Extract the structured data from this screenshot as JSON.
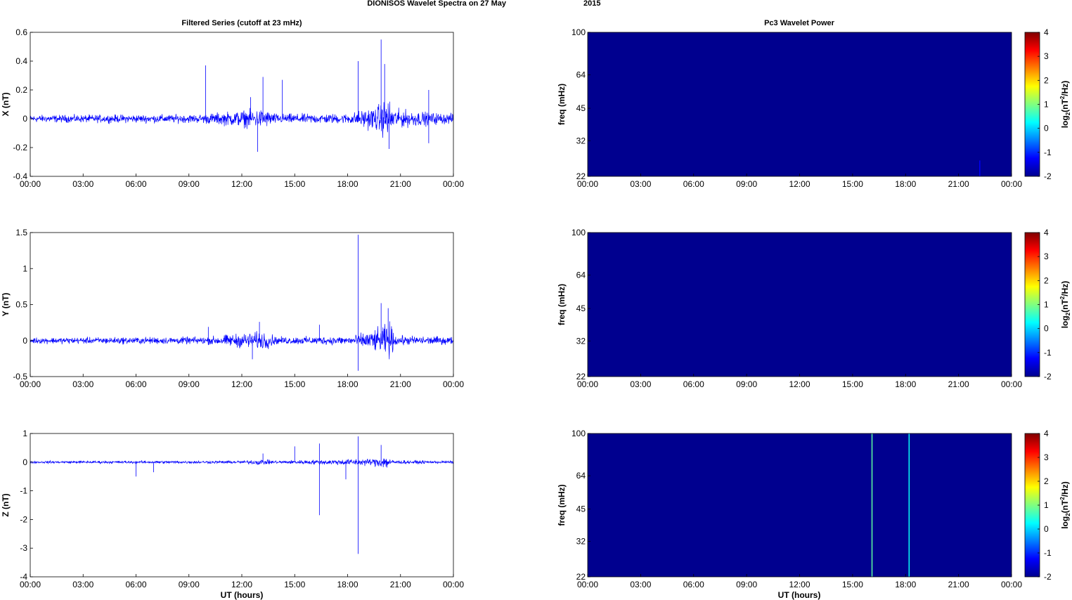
{
  "figure": {
    "title_left": "DIONISOS Wavelet Spectra on 27 May",
    "title_right": "2015",
    "left_column_title": "Filtered Series (cutoff at 23 mHz)",
    "right_column_title": "Pc3 Wavelet Power",
    "xlabel": "UT (hours)"
  },
  "colors": {
    "trace": "#0000ff",
    "background_power": "#00008f",
    "colormap": [
      "#00008f",
      "#0000ff",
      "#0080ff",
      "#00ffff",
      "#80ff80",
      "#ffff00",
      "#ff8000",
      "#ff0000",
      "#800000"
    ]
  },
  "chart_data": [
    {
      "type": "line",
      "panel": "X",
      "ylabel": "X (nT)",
      "xlim": [
        "00:00",
        "24:00"
      ],
      "ylim": [
        -0.4,
        0.6
      ],
      "xticks": [
        "00:00",
        "03:00",
        "06:00",
        "09:00",
        "12:00",
        "15:00",
        "18:00",
        "21:00",
        "00:00"
      ],
      "yticks": [
        -0.4,
        -0.2,
        0,
        0.2,
        0.4,
        0.6
      ],
      "ytick_labels": [
        "-0.4",
        "-0.2",
        "0",
        "0.2",
        "0.4",
        "0.6"
      ],
      "baseline_amp": 0.03,
      "envelope": [
        [
          0,
          0.03
        ],
        [
          9.5,
          0.035
        ],
        [
          12.2,
          0.07
        ],
        [
          13.2,
          0.08
        ],
        [
          14,
          0.04
        ],
        [
          18,
          0.04
        ],
        [
          19.6,
          0.1
        ],
        [
          20.3,
          0.17
        ],
        [
          20.6,
          0.08
        ],
        [
          22.8,
          0.05
        ],
        [
          24,
          0.04
        ]
      ],
      "spikes": [
        [
          9.95,
          0.37
        ],
        [
          12.5,
          0.15
        ],
        [
          12.9,
          -0.23
        ],
        [
          13.2,
          0.29
        ],
        [
          14.3,
          0.27
        ],
        [
          18.6,
          0.4
        ],
        [
          19.9,
          0.55
        ],
        [
          20.1,
          0.38
        ],
        [
          20.35,
          -0.21
        ],
        [
          22.6,
          0.2
        ],
        [
          22.6,
          -0.17
        ]
      ]
    },
    {
      "type": "line",
      "panel": "Y",
      "ylabel": "Y (nT)",
      "xlim": [
        "00:00",
        "24:00"
      ],
      "ylim": [
        -0.5,
        1.5
      ],
      "xticks": [
        "00:00",
        "03:00",
        "06:00",
        "09:00",
        "12:00",
        "15:00",
        "18:00",
        "21:00",
        "00:00"
      ],
      "yticks": [
        -0.5,
        0,
        0.5,
        1,
        1.5
      ],
      "ytick_labels": [
        "-0.5",
        "0",
        "0.5",
        "1",
        "1.5"
      ],
      "baseline_amp": 0.05,
      "envelope": [
        [
          0,
          0.05
        ],
        [
          10,
          0.06
        ],
        [
          12,
          0.12
        ],
        [
          13.3,
          0.15
        ],
        [
          14,
          0.06
        ],
        [
          18.2,
          0.07
        ],
        [
          19.8,
          0.2
        ],
        [
          20.4,
          0.3
        ],
        [
          20.7,
          0.08
        ],
        [
          24,
          0.06
        ]
      ],
      "spikes": [
        [
          10.1,
          0.19
        ],
        [
          12.6,
          -0.26
        ],
        [
          13,
          0.26
        ],
        [
          16.4,
          0.22
        ],
        [
          18.6,
          1.47
        ],
        [
          18.6,
          -0.42
        ],
        [
          19.9,
          0.52
        ],
        [
          20.3,
          0.45
        ]
      ]
    },
    {
      "type": "line",
      "panel": "Z",
      "ylabel": "Z (nT)",
      "xlim": [
        "00:00",
        "24:00"
      ],
      "ylim": [
        -4,
        1
      ],
      "xticks": [
        "00:00",
        "03:00",
        "06:00",
        "09:00",
        "12:00",
        "15:00",
        "18:00",
        "21:00",
        "00:00"
      ],
      "yticks": [
        -4,
        -3,
        -2,
        -1,
        0,
        1
      ],
      "ytick_labels": [
        "-4",
        "-3",
        "-2",
        "-1",
        "0",
        "1"
      ],
      "baseline_amp": 0.05,
      "envelope": [
        [
          0,
          0.05
        ],
        [
          12,
          0.06
        ],
        [
          13,
          0.12
        ],
        [
          14,
          0.06
        ],
        [
          19.5,
          0.15
        ],
        [
          20.2,
          0.3
        ],
        [
          20.5,
          0.08
        ],
        [
          24,
          0.05
        ]
      ],
      "spikes": [
        [
          6,
          -0.5
        ],
        [
          7,
          -0.35
        ],
        [
          13.2,
          0.3
        ],
        [
          15,
          0.55
        ],
        [
          16.4,
          0.65
        ],
        [
          16.4,
          -1.85
        ],
        [
          17.9,
          -0.6
        ],
        [
          18.6,
          0.9
        ],
        [
          18.6,
          -3.2
        ],
        [
          19.9,
          0.6
        ]
      ]
    },
    {
      "type": "heatmap",
      "panel": "X power",
      "ylabel": "freq (mHz)",
      "clabel": "log2(nT2/Hz)",
      "yscale": "log",
      "ylim": [
        22,
        100
      ],
      "yticks": [
        22,
        32,
        45,
        64,
        100
      ],
      "ytick_labels": [
        "22",
        "32",
        "45",
        "64",
        "100"
      ],
      "clim": [
        -2,
        4
      ],
      "cticks": [
        -2,
        -1,
        0,
        1,
        2,
        3,
        4
      ],
      "ctick_labels": [
        "-2",
        "-1",
        "0",
        "1",
        "2",
        "3",
        "4"
      ],
      "xticks": [
        "00:00",
        "03:00",
        "06:00",
        "09:00",
        "12:00",
        "15:00",
        "18:00",
        "21:00",
        "00:00"
      ],
      "background_value": -2,
      "features": [
        [
          22.2,
          -1.3,
          26
        ]
      ]
    },
    {
      "type": "heatmap",
      "panel": "Y power",
      "ylabel": "freq (mHz)",
      "clabel": "log2(nT2/Hz)",
      "yscale": "log",
      "ylim": [
        22,
        100
      ],
      "yticks": [
        22,
        32,
        45,
        64,
        100
      ],
      "ytick_labels": [
        "22",
        "32",
        "45",
        "64",
        "100"
      ],
      "clim": [
        -2,
        4
      ],
      "cticks": [
        -2,
        -1,
        0,
        1,
        2,
        3,
        4
      ],
      "ctick_labels": [
        "-2",
        "-1",
        "0",
        "1",
        "2",
        "3",
        "4"
      ],
      "xticks": [
        "00:00",
        "03:00",
        "06:00",
        "09:00",
        "12:00",
        "15:00",
        "18:00",
        "21:00",
        "00:00"
      ],
      "background_value": -2,
      "features": []
    },
    {
      "type": "heatmap",
      "panel": "Z power",
      "ylabel": "freq (mHz)",
      "clabel": "log2(nT2/Hz)",
      "yscale": "log",
      "ylim": [
        22,
        100
      ],
      "yticks": [
        22,
        32,
        45,
        64,
        100
      ],
      "ytick_labels": [
        "22",
        "32",
        "45",
        "64",
        "100"
      ],
      "clim": [
        -2,
        4
      ],
      "cticks": [
        -2,
        -1,
        0,
        1,
        2,
        3,
        4
      ],
      "ctick_labels": [
        "-2",
        "-1",
        "0",
        "1",
        "2",
        "3",
        "4"
      ],
      "xticks": [
        "00:00",
        "03:00",
        "06:00",
        "09:00",
        "12:00",
        "15:00",
        "18:00",
        "21:00",
        "00:00"
      ],
      "background_value": -2,
      "features": [
        [
          16.1,
          0.8,
          100
        ],
        [
          18.2,
          0.3,
          100
        ]
      ]
    }
  ]
}
